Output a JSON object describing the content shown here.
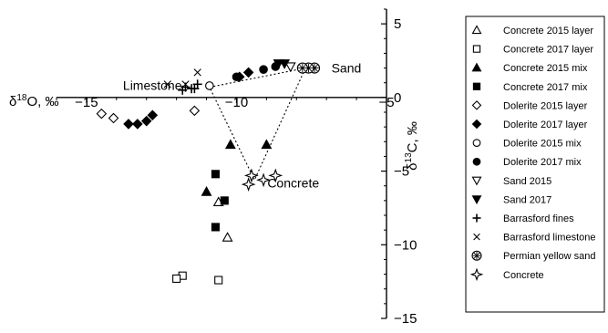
{
  "chart_data": {
    "type": "scatter",
    "title": "",
    "xlabel": "δ18O, ‰",
    "ylabel": "δ13C, ‰",
    "xlabel_base": "δ",
    "xlabel_sup": "18",
    "xlabel_rest": "O, ‰",
    "ylabel_base": "δ",
    "ylabel_sup": "13",
    "ylabel_rest": "C, ‰",
    "xlim": [
      -16,
      -5
    ],
    "ylim": [
      -15,
      6
    ],
    "x_ticks": [
      {
        "value": -15,
        "label": "−15"
      },
      {
        "value": -10,
        "label": "−10"
      },
      {
        "value": -5,
        "label": "−5"
      }
    ],
    "y_ticks": [
      {
        "value": 5,
        "label": "5"
      },
      {
        "value": 0,
        "label": "0"
      },
      {
        "value": -5,
        "label": "−5"
      },
      {
        "value": -10,
        "label": "−10"
      },
      {
        "value": -15,
        "label": "−15"
      }
    ],
    "grid": false,
    "legend_position": "right",
    "annotations": [
      {
        "text": "Limestone",
        "x": -11.7,
        "y": 0.7
      },
      {
        "text": "Sand",
        "x": -7.2,
        "y": 2.0
      },
      {
        "text": "Concrete",
        "x": -9.7,
        "y": -5.8
      }
    ],
    "end_members": {
      "limestone": [
        -10.9,
        0.7
      ],
      "sand": [
        -7.7,
        2.0
      ],
      "concrete": [
        -9.4,
        -5.6
      ]
    },
    "series": [
      {
        "name": "Concrete 2015 layer",
        "marker": "triangle-open",
        "points": [
          [
            -10.3,
            -9.5
          ],
          [
            -10.6,
            -7.1
          ]
        ]
      },
      {
        "name": "Concrete 2017 layer",
        "marker": "square-open",
        "points": [
          [
            -11.8,
            -12.1
          ],
          [
            -12.0,
            -12.3
          ],
          [
            -10.6,
            -12.4
          ]
        ]
      },
      {
        "name": "Concrete 2015 mix",
        "marker": "triangle-filled",
        "points": [
          [
            -9.0,
            -3.2
          ],
          [
            -10.2,
            -3.2
          ],
          [
            -11.0,
            -6.4
          ]
        ]
      },
      {
        "name": "Concrete 2017 mix",
        "marker": "square-filled",
        "points": [
          [
            -10.7,
            -5.2
          ],
          [
            -10.4,
            -7.0
          ],
          [
            -10.7,
            -8.8
          ]
        ]
      },
      {
        "name": "Dolerite 2015 layer",
        "marker": "diamond-open",
        "points": [
          [
            -14.5,
            -1.1
          ],
          [
            -14.1,
            -1.4
          ],
          [
            -11.4,
            -0.9
          ]
        ]
      },
      {
        "name": "Dolerite 2017 layer",
        "marker": "diamond-filled",
        "points": [
          [
            -12.8,
            -1.2
          ],
          [
            -13.0,
            -1.6
          ],
          [
            -13.3,
            -1.8
          ],
          [
            -13.6,
            -1.8
          ],
          [
            -9.6,
            1.7
          ],
          [
            -9.9,
            1.4
          ]
        ]
      },
      {
        "name": "Dolerite 2015 mix",
        "marker": "circle-open",
        "points": [
          [
            -10.9,
            0.8
          ]
        ]
      },
      {
        "name": "Dolerite 2017 mix",
        "marker": "circle-filled",
        "points": [
          [
            -10.0,
            1.4
          ],
          [
            -9.1,
            1.9
          ],
          [
            -8.7,
            2.1
          ]
        ]
      },
      {
        "name": "Sand 2015",
        "marker": "triangle-down-open",
        "points": [
          [
            -8.2,
            2.1
          ]
        ]
      },
      {
        "name": "Sand 2017",
        "marker": "triangle-down-filled",
        "points": [
          [
            -8.4,
            2.3
          ],
          [
            -8.6,
            2.3
          ]
        ]
      },
      {
        "name": "Barrasford fines",
        "marker": "plus",
        "points": [
          [
            -11.5,
            0.6
          ],
          [
            -11.7,
            0.7
          ],
          [
            -11.3,
            0.9
          ],
          [
            -11.8,
            0.5
          ],
          [
            -11.4,
            0.6
          ]
        ]
      },
      {
        "name": "Barrasford limestone",
        "marker": "x",
        "points": [
          [
            -11.3,
            1.7
          ],
          [
            -12.3,
            0.9
          ],
          [
            -11.7,
            0.9
          ]
        ]
      },
      {
        "name": "Permian yellow sand",
        "marker": "asterisk-circle",
        "points": [
          [
            -7.4,
            2.0
          ],
          [
            -7.6,
            2.0
          ],
          [
            -7.8,
            2.0
          ]
        ]
      },
      {
        "name": "Concrete",
        "marker": "star4-open",
        "points": [
          [
            -9.5,
            -5.3
          ],
          [
            -9.6,
            -5.9
          ],
          [
            -9.1,
            -5.6
          ],
          [
            -8.7,
            -5.3
          ]
        ]
      }
    ]
  }
}
